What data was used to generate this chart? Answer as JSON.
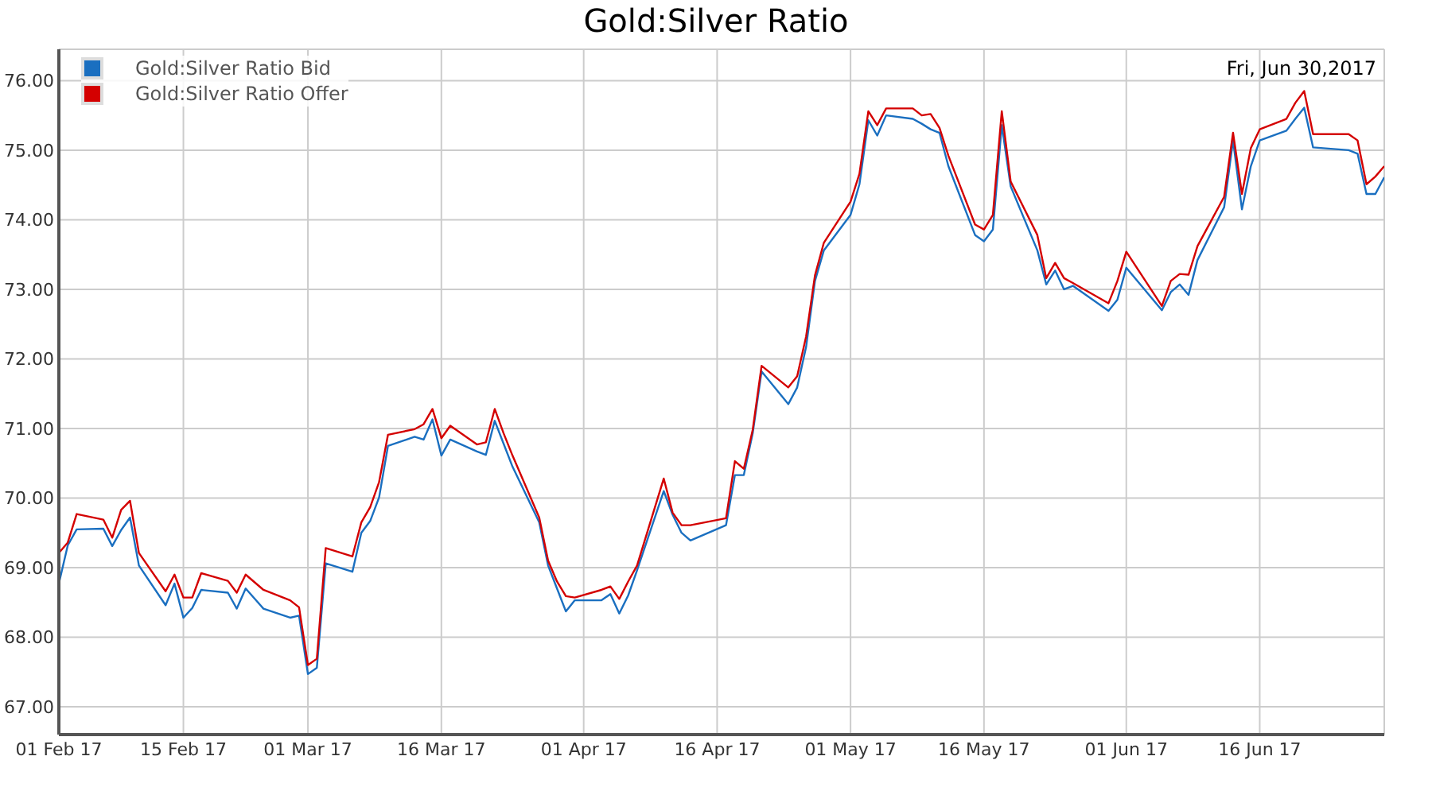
{
  "chart_data": {
    "type": "line",
    "title": "Gold:Silver Ratio",
    "annotations": [
      "Fri, Jun 30,2017"
    ],
    "x": [
      "2017-02-01",
      "2017-02-02",
      "2017-02-03",
      "2017-02-06",
      "2017-02-07",
      "2017-02-08",
      "2017-02-09",
      "2017-02-10",
      "2017-02-13",
      "2017-02-14",
      "2017-02-15",
      "2017-02-16",
      "2017-02-17",
      "2017-02-20",
      "2017-02-21",
      "2017-02-22",
      "2017-02-24",
      "2017-02-27",
      "2017-02-28",
      "2017-03-01",
      "2017-03-02",
      "2017-03-03",
      "2017-03-06",
      "2017-03-07",
      "2017-03-08",
      "2017-03-09",
      "2017-03-10",
      "2017-03-13",
      "2017-03-14",
      "2017-03-15",
      "2017-03-16",
      "2017-03-17",
      "2017-03-20",
      "2017-03-21",
      "2017-03-22",
      "2017-03-23",
      "2017-03-24",
      "2017-03-27",
      "2017-03-28",
      "2017-03-29",
      "2017-03-30",
      "2017-03-31",
      "2017-04-03",
      "2017-04-04",
      "2017-04-05",
      "2017-04-06",
      "2017-04-07",
      "2017-04-10",
      "2017-04-11",
      "2017-04-12",
      "2017-04-13",
      "2017-04-17",
      "2017-04-18",
      "2017-04-19",
      "2017-04-20",
      "2017-04-21",
      "2017-04-24",
      "2017-04-25",
      "2017-04-26",
      "2017-04-27",
      "2017-04-28",
      "2017-05-01",
      "2017-05-02",
      "2017-05-03",
      "2017-05-04",
      "2017-05-05",
      "2017-05-08",
      "2017-05-09",
      "2017-05-10",
      "2017-05-11",
      "2017-05-12",
      "2017-05-15",
      "2017-05-16",
      "2017-05-17",
      "2017-05-18",
      "2017-05-19",
      "2017-05-22",
      "2017-05-23",
      "2017-05-24",
      "2017-05-25",
      "2017-05-26",
      "2017-05-30",
      "2017-05-31",
      "2017-06-01",
      "2017-06-05",
      "2017-06-06",
      "2017-06-07",
      "2017-06-08",
      "2017-06-09",
      "2017-06-12",
      "2017-06-13",
      "2017-06-14",
      "2017-06-15",
      "2017-06-16",
      "2017-06-19",
      "2017-06-20",
      "2017-06-21",
      "2017-06-22",
      "2017-06-26",
      "2017-06-27",
      "2017-06-28",
      "2017-06-29",
      "2017-06-30"
    ],
    "series": [
      {
        "name": "Gold:Silver Ratio Bid",
        "color": "#1a6fc0",
        "values": [
          68.77,
          69.32,
          69.55,
          69.56,
          69.31,
          69.54,
          69.72,
          69.03,
          68.46,
          68.77,
          68.28,
          68.42,
          68.68,
          68.64,
          68.41,
          68.7,
          68.41,
          68.28,
          68.31,
          67.47,
          67.56,
          69.06,
          68.94,
          69.5,
          69.67,
          70.01,
          70.75,
          70.88,
          70.84,
          71.13,
          70.61,
          70.84,
          70.67,
          70.62,
          71.11,
          70.78,
          70.45,
          69.65,
          69.03,
          68.7,
          68.37,
          68.53,
          68.53,
          68.62,
          68.34,
          68.6,
          68.96,
          70.1,
          69.76,
          69.5,
          69.39,
          69.61,
          70.33,
          70.33,
          70.93,
          71.82,
          71.35,
          71.59,
          72.17,
          73.12,
          73.56,
          74.07,
          74.51,
          75.43,
          75.21,
          75.5,
          75.45,
          75.38,
          75.3,
          75.25,
          74.77,
          73.78,
          73.69,
          73.86,
          75.36,
          74.48,
          73.56,
          73.07,
          73.27,
          73.0,
          73.05,
          72.69,
          72.85,
          73.31,
          72.7,
          72.96,
          73.07,
          72.92,
          73.42,
          74.18,
          75.14,
          74.15,
          74.77,
          75.14,
          75.28,
          75.45,
          75.61,
          75.04,
          75.0,
          74.95,
          74.37,
          74.37,
          74.61
        ]
      },
      {
        "name": "Gold:Silver Ratio Offer",
        "color": "#d40000",
        "values": [
          69.21,
          69.36,
          69.77,
          69.69,
          69.43,
          69.83,
          69.96,
          69.21,
          68.66,
          68.9,
          68.57,
          68.57,
          68.92,
          68.81,
          68.64,
          68.9,
          68.68,
          68.53,
          68.43,
          67.6,
          67.69,
          69.28,
          69.16,
          69.65,
          69.87,
          70.23,
          70.91,
          70.99,
          71.06,
          71.28,
          70.86,
          71.04,
          70.77,
          70.8,
          71.28,
          70.93,
          70.61,
          69.72,
          69.1,
          68.8,
          68.59,
          68.57,
          68.68,
          68.73,
          68.55,
          68.8,
          69.03,
          70.28,
          69.79,
          69.61,
          69.61,
          69.71,
          70.53,
          70.42,
          70.98,
          71.9,
          71.59,
          71.75,
          72.32,
          73.2,
          73.67,
          74.26,
          74.66,
          75.56,
          75.36,
          75.6,
          75.6,
          75.5,
          75.52,
          75.32,
          74.92,
          73.93,
          73.86,
          74.07,
          75.56,
          74.55,
          73.78,
          73.16,
          73.38,
          73.16,
          73.09,
          72.8,
          73.12,
          73.54,
          72.76,
          73.12,
          73.22,
          73.21,
          73.62,
          74.33,
          75.25,
          74.37,
          75.03,
          75.3,
          75.45,
          75.68,
          75.85,
          75.23,
          75.23,
          75.14,
          74.51,
          74.62,
          74.77
        ]
      }
    ],
    "xlim": [
      "2017-02-01",
      "2017-06-30"
    ],
    "xticks": [
      {
        "value": "2017-02-01",
        "label": "01 Feb 17"
      },
      {
        "value": "2017-02-15",
        "label": "15 Feb 17"
      },
      {
        "value": "2017-03-01",
        "label": "01 Mar 17"
      },
      {
        "value": "2017-03-16",
        "label": "16 Mar 17"
      },
      {
        "value": "2017-04-01",
        "label": "01 Apr 17"
      },
      {
        "value": "2017-04-16",
        "label": "16 Apr 17"
      },
      {
        "value": "2017-05-01",
        "label": "01 May 17"
      },
      {
        "value": "2017-05-16",
        "label": "16 May 17"
      },
      {
        "value": "2017-06-01",
        "label": "01 Jun 17"
      },
      {
        "value": "2017-06-16",
        "label": "16 Jun 17"
      }
    ],
    "ylim": [
      66.6,
      76.45
    ],
    "yticks": [
      {
        "value": 67,
        "label": "67.00"
      },
      {
        "value": 68,
        "label": "68.00"
      },
      {
        "value": 69,
        "label": "69.00"
      },
      {
        "value": 70,
        "label": "70.00"
      },
      {
        "value": 71,
        "label": "71.00"
      },
      {
        "value": 72,
        "label": "72.00"
      },
      {
        "value": 73,
        "label": "73.00"
      },
      {
        "value": 74,
        "label": "74.00"
      },
      {
        "value": 75,
        "label": "75.00"
      },
      {
        "value": 76,
        "label": "76.00"
      }
    ],
    "grid": true,
    "legend": "top left",
    "marker": "none",
    "line_style": "solid"
  }
}
